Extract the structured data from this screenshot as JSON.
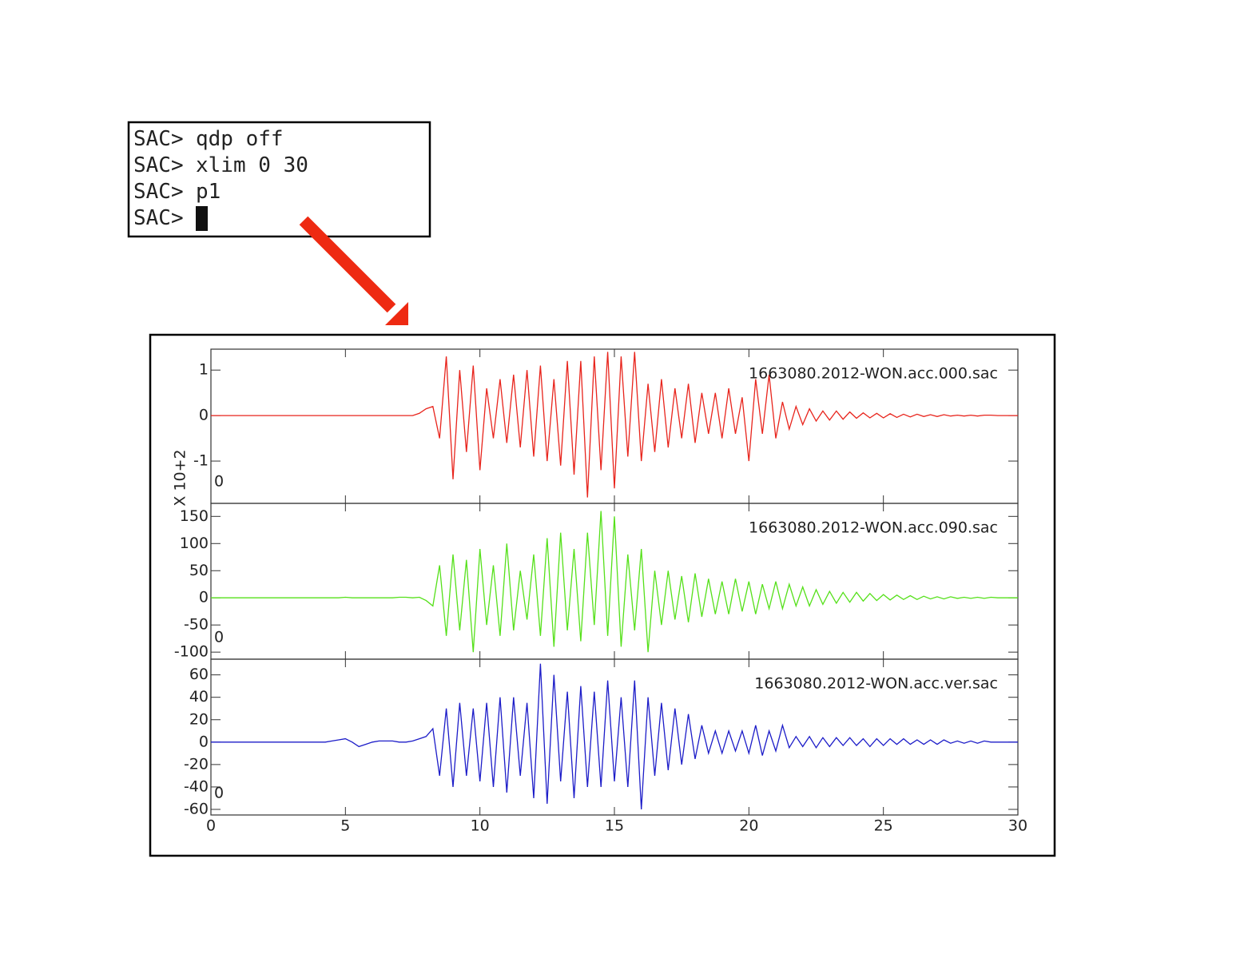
{
  "terminal": {
    "lines": [
      {
        "prompt": "SAC>",
        "command": "qdp off"
      },
      {
        "prompt": "SAC>",
        "command": "xlim 0 30"
      },
      {
        "prompt": "SAC>",
        "command": "p1"
      },
      {
        "prompt": "SAC>"
      }
    ]
  },
  "chart_data": {
    "type": "line",
    "x": [
      0,
      0.25,
      0.5,
      0.75,
      1,
      1.25,
      1.5,
      1.75,
      2,
      2.25,
      2.5,
      2.75,
      3,
      3.25,
      3.5,
      3.75,
      4,
      4.25,
      4.5,
      4.75,
      5,
      5.25,
      5.5,
      5.75,
      6,
      6.25,
      6.5,
      6.75,
      7,
      7.25,
      7.5,
      7.75,
      8,
      8.25,
      8.5,
      8.75,
      9,
      9.25,
      9.5,
      9.75,
      10,
      10.25,
      10.5,
      10.75,
      11,
      11.25,
      11.5,
      11.75,
      12,
      12.25,
      12.5,
      12.75,
      13,
      13.25,
      13.5,
      13.75,
      14,
      14.25,
      14.5,
      14.75,
      15,
      15.25,
      15.5,
      15.75,
      16,
      16.25,
      16.5,
      16.75,
      17,
      17.25,
      17.5,
      17.75,
      18,
      18.25,
      18.5,
      18.75,
      19,
      19.25,
      19.5,
      19.75,
      20,
      20.25,
      20.5,
      20.75,
      21,
      21.25,
      21.5,
      21.75,
      22,
      22.25,
      22.5,
      22.75,
      23,
      23.25,
      23.5,
      23.75,
      24,
      24.25,
      24.5,
      24.75,
      25,
      25.25,
      25.5,
      25.75,
      26,
      26.25,
      26.5,
      26.75,
      27,
      27.25,
      27.5,
      27.75,
      28,
      28.25,
      28.5,
      28.75,
      29,
      29.25,
      29.5,
      29.75,
      30
    ],
    "xlim": [
      0,
      30
    ],
    "xticks": [
      0,
      5,
      10,
      15,
      20,
      25,
      30
    ],
    "panels": [
      {
        "ylabel": "X 10+2",
        "annotation": "0",
        "ylim": [
          -1.93,
          1.46
        ],
        "yticks": [
          -1,
          0,
          1
        ],
        "series": [
          {
            "name": "1663080.2012-WON.acc.000.sac",
            "color": "#e8241c",
            "values": [
              0,
              0,
              0,
              0,
              0,
              0,
              0,
              0,
              0,
              0,
              0,
              0,
              0,
              0,
              0,
              0,
              0,
              0,
              0,
              0,
              0,
              0,
              0,
              0,
              0,
              0,
              0,
              0,
              0,
              0,
              0,
              0.05,
              0.15,
              0.2,
              -0.5,
              1.3,
              -1.4,
              1.0,
              -0.8,
              1.1,
              -1.2,
              0.6,
              -0.5,
              0.8,
              -0.6,
              0.9,
              -0.7,
              1.0,
              -0.9,
              1.1,
              -1.0,
              0.8,
              -1.1,
              1.2,
              -1.3,
              1.2,
              -1.8,
              1.3,
              -1.2,
              1.4,
              -1.6,
              1.3,
              -0.9,
              1.4,
              -1.0,
              0.7,
              -0.8,
              0.8,
              -0.7,
              0.6,
              -0.5,
              0.7,
              -0.6,
              0.5,
              -0.4,
              0.5,
              -0.5,
              0.6,
              -0.4,
              0.4,
              -1.0,
              0.8,
              -0.4,
              0.9,
              -0.5,
              0.3,
              -0.3,
              0.2,
              -0.2,
              0.15,
              -0.12,
              0.1,
              -0.1,
              0.1,
              -0.08,
              0.08,
              -0.06,
              0.06,
              -0.05,
              0.05,
              -0.05,
              0.04,
              -0.04,
              0.03,
              -0.03,
              0.03,
              -0.02,
              0.02,
              -0.02,
              0.02,
              -0.01,
              0.01,
              -0.01,
              0.01,
              -0.01,
              0.01,
              0.01,
              0,
              0,
              0,
              0
            ]
          }
        ]
      },
      {
        "annotation": "0",
        "ylim": [
          -113,
          174
        ],
        "yticks": [
          -100,
          -50,
          0,
          50,
          100,
          150
        ],
        "series": [
          {
            "name": "1663080.2012-WON.acc.090.sac",
            "color": "#55e01a",
            "values": [
              0,
              0,
              0,
              0,
              0,
              0,
              0,
              0,
              0,
              0,
              0,
              0,
              0,
              0,
              0,
              0,
              0,
              0,
              0,
              0,
              1,
              0,
              0,
              0,
              0,
              0,
              0,
              0,
              1,
              1,
              0,
              1,
              -5,
              -15,
              60,
              -70,
              80,
              -60,
              70,
              -100,
              90,
              -50,
              60,
              -70,
              100,
              -60,
              50,
              -40,
              80,
              -70,
              110,
              -90,
              120,
              -60,
              90,
              -80,
              120,
              -50,
              160,
              -70,
              150,
              -90,
              80,
              -60,
              90,
              -100,
              50,
              -50,
              50,
              -40,
              40,
              -45,
              45,
              -35,
              35,
              -30,
              30,
              -30,
              35,
              -25,
              30,
              -30,
              25,
              -20,
              30,
              -20,
              25,
              -15,
              20,
              -15,
              15,
              -12,
              12,
              -10,
              10,
              -8,
              10,
              -6,
              8,
              -5,
              6,
              -4,
              5,
              -3,
              4,
              -3,
              3,
              -2,
              2,
              -2,
              2,
              -1,
              1,
              -1,
              1,
              -1,
              1,
              0,
              0,
              0,
              0
            ]
          }
        ]
      },
      {
        "annotation": "0",
        "ylim": [
          -65,
          74
        ],
        "yticks": [
          -60,
          -40,
          -20,
          0,
          20,
          40,
          60
        ],
        "series": [
          {
            "name": "1663080.2012-WON.acc.ver.sac",
            "color": "#1c1cc8",
            "values": [
              0,
              0,
              0,
              0,
              0,
              0,
              0,
              0,
              0,
              0,
              0,
              0,
              0,
              0,
              0,
              0,
              0,
              0,
              1,
              2,
              3,
              0,
              -4,
              -2,
              0,
              1,
              1,
              1,
              0,
              0,
              1,
              3,
              5,
              12,
              -30,
              30,
              -40,
              35,
              -30,
              30,
              -35,
              35,
              -40,
              40,
              -45,
              40,
              -30,
              35,
              -50,
              70,
              -55,
              60,
              -35,
              45,
              -50,
              50,
              -40,
              45,
              -40,
              55,
              -35,
              40,
              -40,
              55,
              -60,
              40,
              -30,
              35,
              -25,
              30,
              -20,
              25,
              -15,
              15,
              -10,
              10,
              -10,
              10,
              -8,
              10,
              -10,
              15,
              -12,
              10,
              -8,
              15,
              -5,
              5,
              -4,
              5,
              -5,
              4,
              -4,
              4,
              -3,
              4,
              -3,
              3,
              -4,
              3,
              -3,
              3,
              -2,
              3,
              -2,
              2,
              -2,
              2,
              -2,
              2,
              -1,
              1,
              -1,
              1,
              -1,
              1,
              0,
              0,
              0,
              0,
              0
            ]
          }
        ]
      }
    ]
  }
}
